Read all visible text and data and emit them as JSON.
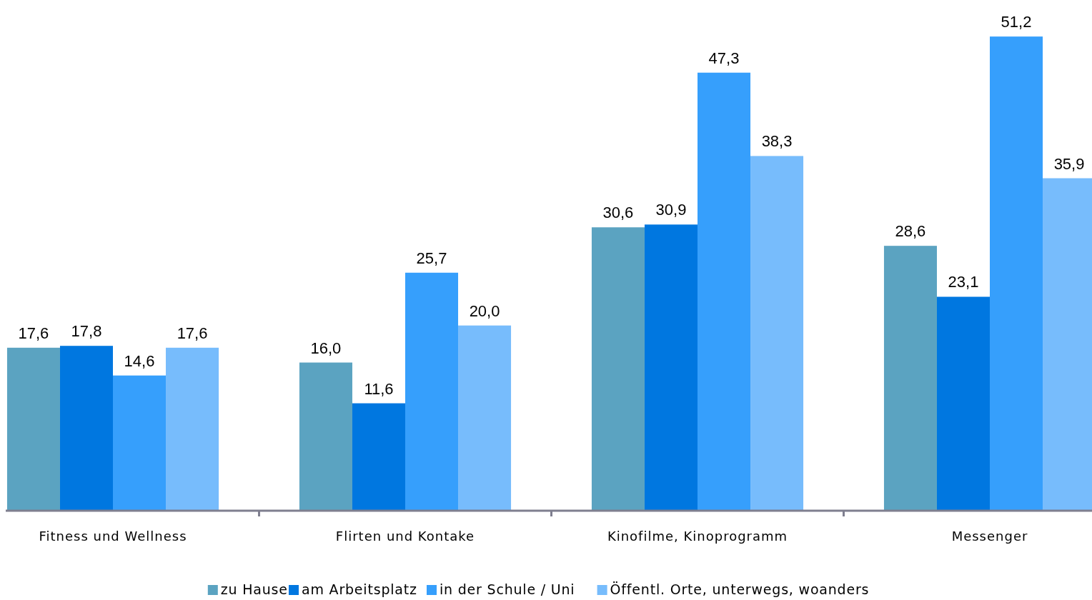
{
  "chart_data": {
    "type": "bar",
    "categories": [
      "Fitness und Wellness",
      "Flirten und Kontake",
      "Kinofilme, Kinoprogramm",
      "Messenger"
    ],
    "series": [
      {
        "name": "zu Hause",
        "color": "#5ba3c1",
        "values": [
          17.6,
          16.0,
          30.6,
          28.6
        ],
        "value_labels": [
          "17,6",
          "16,0",
          "30,6",
          "28,6"
        ]
      },
      {
        "name": "am Arbeitsplatz",
        "color": "#0077e0",
        "values": [
          17.8,
          11.6,
          30.9,
          23.1
        ],
        "value_labels": [
          "17,8",
          "11,6",
          "30,9",
          "23,1"
        ]
      },
      {
        "name": "in der Schule / Uni",
        "color": "#369ffc",
        "values": [
          14.6,
          25.7,
          47.3,
          51.2
        ],
        "value_labels": [
          "14,6",
          "25,7",
          "47,3",
          "51,2"
        ]
      },
      {
        "name": "Öffentl. Orte, unterwegs, woanders",
        "color": "#77bcfc",
        "values": [
          17.6,
          20.0,
          38.3,
          35.9
        ],
        "value_labels": [
          "17,6",
          "20,0",
          "38,3",
          "35,9"
        ]
      }
    ],
    "legend": "bottom"
  }
}
